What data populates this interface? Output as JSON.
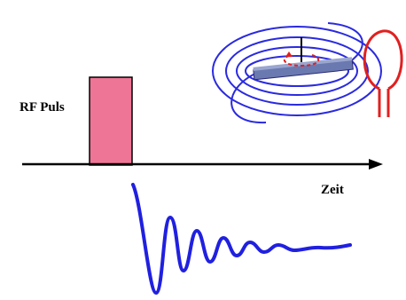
{
  "labels": {
    "rf_pulse": "RF Puls",
    "time_axis": "Zeit"
  }
}
